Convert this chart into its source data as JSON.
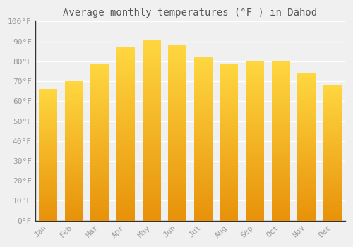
{
  "title": "Average monthly temperatures (°F ) in Dāhod",
  "months": [
    "Jan",
    "Feb",
    "Mar",
    "Apr",
    "May",
    "Jun",
    "Jul",
    "Aug",
    "Sep",
    "Oct",
    "Nov",
    "Dec"
  ],
  "values": [
    66,
    70,
    79,
    87,
    91,
    88,
    82,
    79,
    80,
    80,
    74,
    68
  ],
  "bar_color_top": "#E8920A",
  "bar_color_bottom": "#FFD740",
  "ylim": [
    0,
    100
  ],
  "yticks": [
    0,
    10,
    20,
    30,
    40,
    50,
    60,
    70,
    80,
    90,
    100
  ],
  "ytick_labels": [
    "0°F",
    "10°F",
    "20°F",
    "30°F",
    "40°F",
    "50°F",
    "60°F",
    "70°F",
    "80°F",
    "90°F",
    "100°F"
  ],
  "background_color": "#f0f0f0",
  "plot_bg_color": "#f0f0f0",
  "grid_color": "#ffffff",
  "title_fontsize": 10,
  "tick_fontsize": 8,
  "tick_color": "#999999",
  "title_color": "#555555",
  "font_family": "monospace",
  "bar_width": 0.7,
  "spine_color": "#333333"
}
